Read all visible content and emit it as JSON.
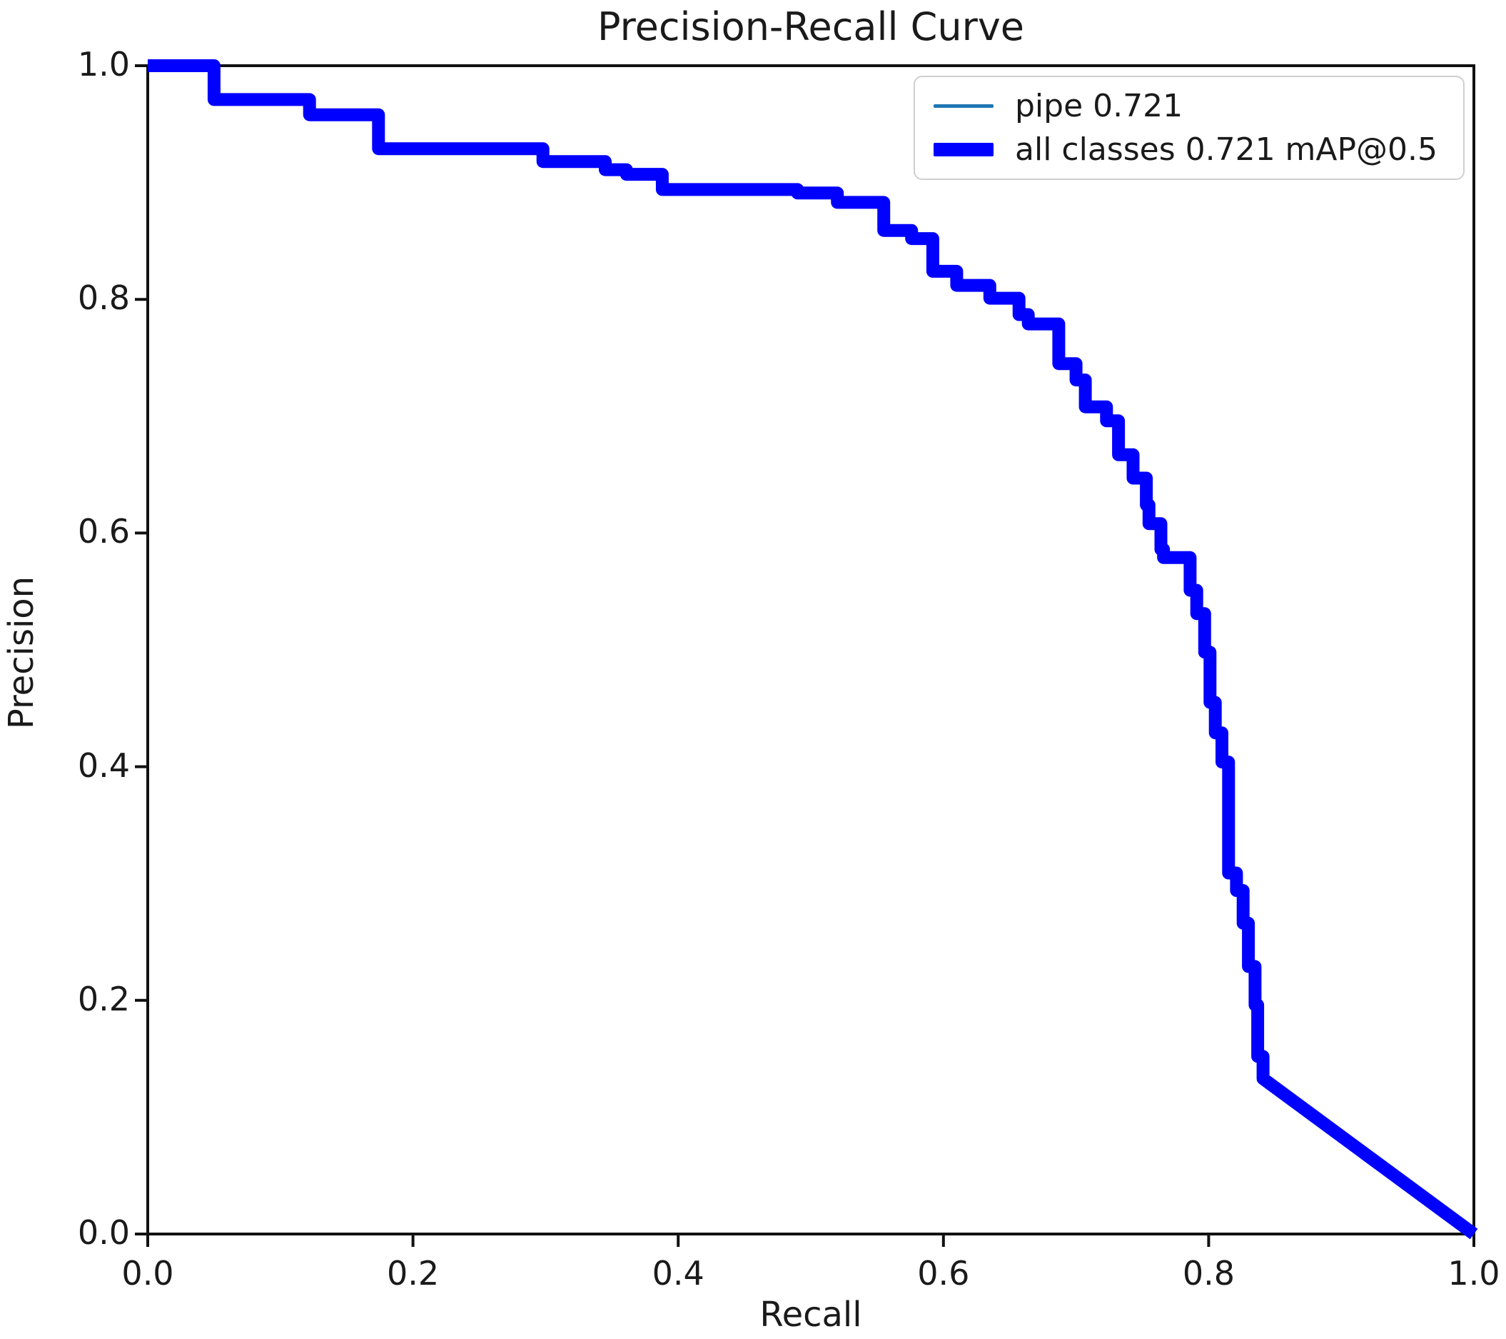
{
  "title": "Precision-Recall Curve",
  "xlabel": "Recall",
  "ylabel": "Precision",
  "colors": {
    "pipe_line": "#1f77b4",
    "all_classes_line": "#0000ff",
    "axes": "#111111",
    "background": "#ffffff",
    "legend_border": "#cfcfcf"
  },
  "legend": {
    "position": "upper right",
    "items": [
      {
        "label": "pipe 0.721",
        "color": "#1f77b4",
        "style": "thin"
      },
      {
        "label": "all classes 0.721 mAP@0.5",
        "color": "#0000ff",
        "style": "thick"
      }
    ]
  },
  "chart_data": {
    "type": "line",
    "title": "Precision-Recall Curve",
    "xlabel": "Recall",
    "ylabel": "Precision",
    "xlim": [
      0,
      1
    ],
    "ylim": [
      0,
      1
    ],
    "xticks": [
      "0.0",
      "0.2",
      "0.4",
      "0.6",
      "0.8",
      "1.0"
    ],
    "yticks": [
      "0.0",
      "0.2",
      "0.4",
      "0.6",
      "0.8",
      "1.0"
    ],
    "grid": false,
    "legend_position": "upper right",
    "points_recall_precision": [
      [
        0.0,
        1.0
      ],
      [
        0.05,
        1.0
      ],
      [
        0.05,
        0.971
      ],
      [
        0.122,
        0.971
      ],
      [
        0.122,
        0.958
      ],
      [
        0.174,
        0.958
      ],
      [
        0.174,
        0.929
      ],
      [
        0.298,
        0.929
      ],
      [
        0.298,
        0.918
      ],
      [
        0.345,
        0.918
      ],
      [
        0.345,
        0.911
      ],
      [
        0.361,
        0.911
      ],
      [
        0.361,
        0.907
      ],
      [
        0.388,
        0.907
      ],
      [
        0.388,
        0.894
      ],
      [
        0.49,
        0.894
      ],
      [
        0.49,
        0.891
      ],
      [
        0.52,
        0.891
      ],
      [
        0.52,
        0.883
      ],
      [
        0.555,
        0.883
      ],
      [
        0.555,
        0.859
      ],
      [
        0.576,
        0.859
      ],
      [
        0.576,
        0.852
      ],
      [
        0.592,
        0.852
      ],
      [
        0.592,
        0.824
      ],
      [
        0.61,
        0.824
      ],
      [
        0.61,
        0.812
      ],
      [
        0.635,
        0.812
      ],
      [
        0.635,
        0.801
      ],
      [
        0.657,
        0.801
      ],
      [
        0.657,
        0.787
      ],
      [
        0.664,
        0.787
      ],
      [
        0.664,
        0.779
      ],
      [
        0.687,
        0.779
      ],
      [
        0.687,
        0.745
      ],
      [
        0.7,
        0.745
      ],
      [
        0.7,
        0.731
      ],
      [
        0.707,
        0.731
      ],
      [
        0.707,
        0.708
      ],
      [
        0.723,
        0.708
      ],
      [
        0.723,
        0.696
      ],
      [
        0.732,
        0.696
      ],
      [
        0.732,
        0.667
      ],
      [
        0.743,
        0.667
      ],
      [
        0.743,
        0.647
      ],
      [
        0.753,
        0.647
      ],
      [
        0.753,
        0.624
      ],
      [
        0.755,
        0.624
      ],
      [
        0.755,
        0.608
      ],
      [
        0.764,
        0.608
      ],
      [
        0.764,
        0.586
      ],
      [
        0.766,
        0.586
      ],
      [
        0.766,
        0.579
      ],
      [
        0.786,
        0.579
      ],
      [
        0.786,
        0.551
      ],
      [
        0.791,
        0.551
      ],
      [
        0.791,
        0.531
      ],
      [
        0.797,
        0.531
      ],
      [
        0.797,
        0.498
      ],
      [
        0.801,
        0.498
      ],
      [
        0.801,
        0.455
      ],
      [
        0.805,
        0.455
      ],
      [
        0.805,
        0.429
      ],
      [
        0.81,
        0.429
      ],
      [
        0.81,
        0.404
      ],
      [
        0.815,
        0.404
      ],
      [
        0.815,
        0.309
      ],
      [
        0.821,
        0.309
      ],
      [
        0.821,
        0.294
      ],
      [
        0.826,
        0.294
      ],
      [
        0.826,
        0.266
      ],
      [
        0.83,
        0.266
      ],
      [
        0.83,
        0.229
      ],
      [
        0.835,
        0.229
      ],
      [
        0.835,
        0.196
      ],
      [
        0.837,
        0.196
      ],
      [
        0.837,
        0.152
      ],
      [
        0.841,
        0.152
      ],
      [
        0.841,
        0.133
      ],
      [
        1.0,
        0.0
      ]
    ],
    "series": [
      {
        "name": "pipe 0.721",
        "ap_at_0_5": 0.721,
        "color": "#1f77b4",
        "style": "thin",
        "points": "points_recall_precision",
        "note": "single-class curve coincides with the all-classes curve"
      },
      {
        "name": "all classes 0.721 mAP@0.5",
        "map_at_0_5": 0.721,
        "color": "#0000ff",
        "style": "thick",
        "points": "points_recall_precision"
      }
    ]
  }
}
